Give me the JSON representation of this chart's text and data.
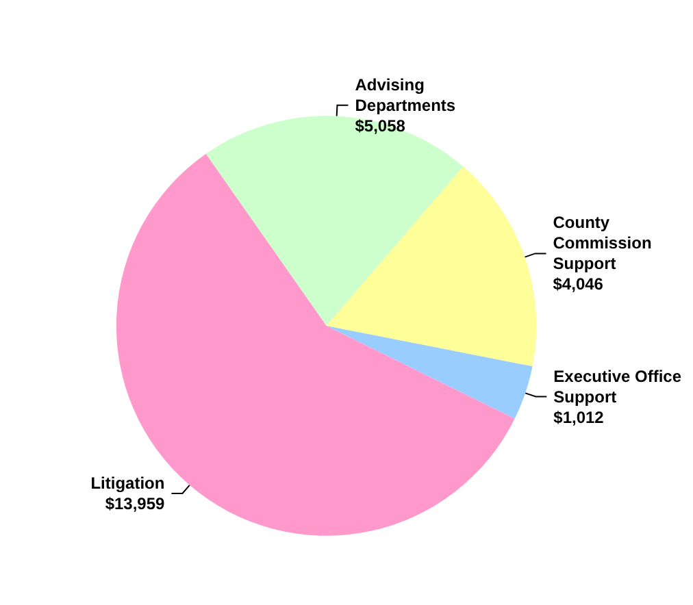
{
  "chart_data": {
    "type": "pie",
    "categories": [
      "Advising Departments",
      "County Commission Support",
      "Executive Office Support",
      "Litigation"
    ],
    "values": [
      5058,
      4046,
      1012,
      13959
    ],
    "value_labels": [
      "$5,058",
      "$4,046",
      "$1,012",
      "$13,959"
    ],
    "colors": [
      "#ccffcc",
      "#ffff99",
      "#99ccff",
      "#ff99cc"
    ]
  }
}
